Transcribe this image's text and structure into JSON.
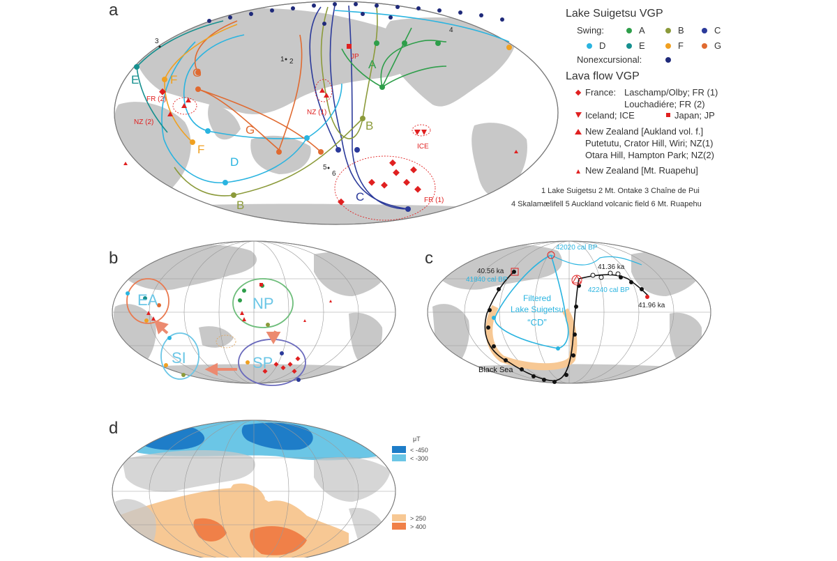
{
  "panels": {
    "a": "a",
    "b": "b",
    "c": "c",
    "d": "d"
  },
  "colors": {
    "A": "#2e9e4a",
    "B": "#8b9a3a",
    "C": "#2b3a9a",
    "D": "#2ab4e0",
    "E": "#16908f",
    "F": "#f0a020",
    "G": "#e06a30",
    "nonex": "#1f2a7a",
    "lava": "#e02020",
    "land": "#c8c8c8",
    "ocean": "#ffffff",
    "blue_dark": "#1e7dc8",
    "blue_light": "#6bc6e6",
    "orange_light": "#f7c894",
    "orange_dark": "#f08048"
  },
  "legend": {
    "suigetsu_title": "Lake Suigetsu VGP",
    "swing_label": "Swing:",
    "swings": [
      "A",
      "B",
      "C",
      "D",
      "E",
      "F",
      "G"
    ],
    "nonexcursional": "Nonexcursional:",
    "lava_title": "Lava flow VGP",
    "france": "France:",
    "france_line1": "Laschamp/Olby; FR (1)",
    "france_line2": "Louchadiére; FR (2)",
    "iceland": "Iceland; ICE",
    "japan": "Japan; JP",
    "nz_auckland": "New Zealand [Aukland vol. f.]",
    "nz_line1": "Putetutu, Crator Hill, Wiri; NZ(1)",
    "nz_line2": "Otara Hill, Hampton Park; NZ(2)",
    "nz_ruapehu": "New Zealand [Mt. Ruapehu]",
    "sites_line1": "1 Lake Suigetsu   2 Mt. Ontake   3 Chaîne de Pui",
    "sites_line2": "4 Skalamælifell   5 Auckland volcanic field  6 Mt. Ruapehu"
  },
  "map_a_labels": {
    "E": "E",
    "F1": "F",
    "G1": "G",
    "F2": "F",
    "G2": "G",
    "D": "D",
    "A": "A",
    "B1": "B",
    "B2": "B",
    "C": "C",
    "FR2": "FR (2)",
    "NZ2": "NZ (2)",
    "NZ1": "NZ (1)",
    "JP": "JP",
    "ICE": "ICE",
    "FR1": "FR (1)",
    "s1": "1",
    "s2": "2",
    "s3": "3",
    "s4": "4",
    "s5": "5",
    "s6": "6"
  },
  "map_b_labels": {
    "EA": "EA",
    "NP": "NP",
    "SI": "SI",
    "SP": "SP"
  },
  "map_c_labels": {
    "t42020": "42020 cal BP",
    "t4056": "40.56 ka",
    "t41840": "41840 cal BP",
    "t4136": "41.36 ka",
    "t42240": "42240 cal BP",
    "t4196": "41.96 ka",
    "filtered1": "Filtered",
    "filtered2": "Lake Suigetsu",
    "cd": "“CD”",
    "blacksea": "Black Sea"
  },
  "map_d_legend": {
    "unit": "μT",
    "neg450": "< -450",
    "neg300": "< -300",
    "pos250": "> 250",
    "pos400": "> 400"
  }
}
